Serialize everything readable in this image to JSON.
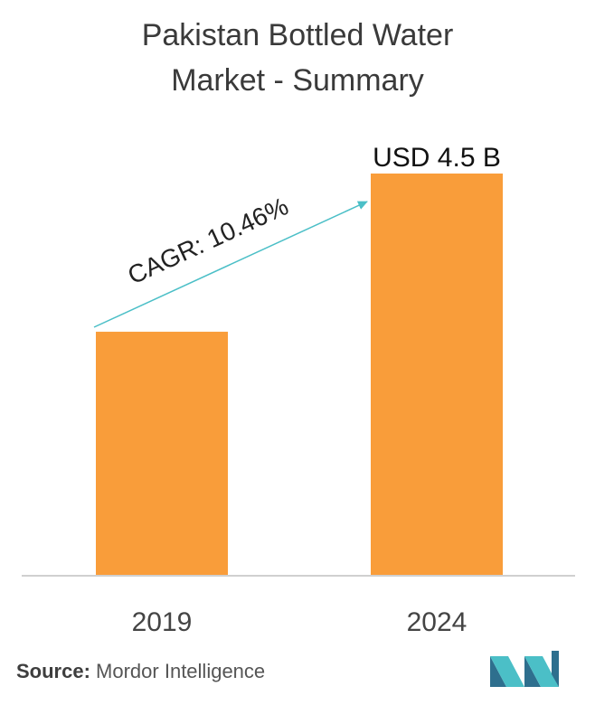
{
  "title": {
    "line1": "Pakistan Bottled Water",
    "line2": "Market - Summary"
  },
  "chart_data": {
    "type": "bar",
    "title": "Pakistan Bottled Water Market - Summary",
    "categories": [
      "2019",
      "2024"
    ],
    "values": [
      2.73,
      4.5
    ],
    "value_labels": [
      "",
      "USD 4.5 B"
    ],
    "annotation": "CAGR: 10.46%",
    "ylim": [
      0,
      4.5
    ],
    "grid": false,
    "legend": "none",
    "bar_color": "#f99d3a",
    "arrow_color": "#4bbfc7",
    "axis_color": "#d0d0d0"
  },
  "source": {
    "label": "Source:",
    "text": "Mordor Intelligence"
  },
  "logo": {
    "icon": "mordor-intelligence-logo-icon",
    "colors": [
      "#2e6f8e",
      "#4bbfc7"
    ]
  }
}
